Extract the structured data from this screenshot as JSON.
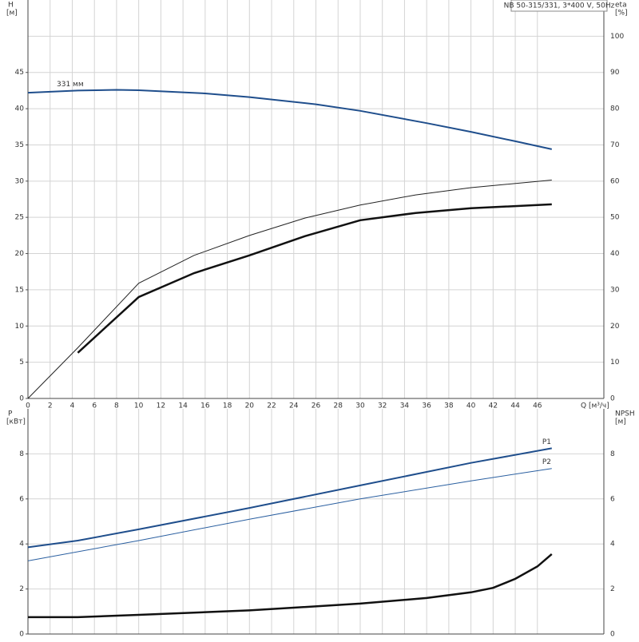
{
  "chart_data": [
    {
      "type": "line",
      "title": "NB 50-315/331, 3*400 V, 50Hz",
      "y_label": "H",
      "y_unit": "[м]",
      "y2_label": "eta",
      "y2_unit": "[%]",
      "x_label": "Q [м³/ч]",
      "xlim": [
        0,
        52
      ],
      "xticks": [
        0,
        2,
        4,
        6,
        8,
        10,
        12,
        14,
        16,
        18,
        20,
        22,
        24,
        26,
        28,
        30,
        32,
        34,
        36,
        38,
        40,
        42,
        44,
        46
      ],
      "ylim": [
        0,
        55
      ],
      "yticks": [
        0,
        5,
        10,
        15,
        20,
        25,
        30,
        35,
        40,
        45
      ],
      "y2lim": [
        0,
        110
      ],
      "y2ticks": [
        0,
        10,
        20,
        30,
        40,
        50,
        60,
        70,
        80,
        90,
        100
      ],
      "grid": true,
      "label_position": "start",
      "series": [
        {
          "name": "331 мм",
          "color": "#1f4e8c",
          "width": 2,
          "x": [
            0,
            4.5,
            8,
            10,
            16,
            20,
            26,
            30,
            36,
            40,
            44,
            47.3
          ],
          "values": [
            42.2,
            42.5,
            42.6,
            42.55,
            42.1,
            41.6,
            40.6,
            39.7,
            38.0,
            36.8,
            35.5,
            34.4
          ]
        },
        {
          "color": "#222222",
          "width": 1,
          "axis": "y2",
          "x": [
            0,
            4.5,
            10,
            15,
            20,
            25,
            30,
            35,
            40,
            47.3
          ],
          "values": [
            0,
            14,
            31.8,
            39.5,
            45,
            49.8,
            53.4,
            56.2,
            58.2,
            60.3
          ]
        },
        {
          "color": "#111111",
          "width": 2.5,
          "axis": "y2",
          "x": [
            4.5,
            10,
            15,
            20,
            25,
            30,
            35,
            40,
            47.3
          ],
          "values": [
            12.6,
            28,
            34.6,
            39.5,
            44.8,
            49.2,
            51.2,
            52.5,
            53.6
          ]
        }
      ]
    },
    {
      "type": "line",
      "y_label": "P",
      "y_unit": "[кВт]",
      "y2_label": "NPSH",
      "y2_unit": "[м]",
      "xlim": [
        0,
        52
      ],
      "ylim": [
        0,
        10
      ],
      "yticks": [
        0,
        2,
        4,
        6,
        8
      ],
      "y2lim": [
        0,
        10
      ],
      "y2ticks": [
        0,
        2,
        4,
        6,
        8
      ],
      "grid": true,
      "label_position": "end",
      "series": [
        {
          "name": "P1",
          "color": "#1f4e8c",
          "width": 2,
          "x": [
            0,
            4.5,
            10,
            20,
            30,
            40,
            47.3
          ],
          "values": [
            3.85,
            4.15,
            4.65,
            5.6,
            6.6,
            7.6,
            8.25
          ]
        },
        {
          "name": "P2",
          "color": "#2a5fa0",
          "width": 1,
          "x": [
            0,
            10,
            20,
            30,
            40,
            47.3
          ],
          "values": [
            3.25,
            4.15,
            5.1,
            6.0,
            6.8,
            7.35
          ]
        },
        {
          "color": "#111111",
          "width": 2.5,
          "axis": "y2",
          "x": [
            0,
            4.5,
            10,
            20,
            30,
            36,
            40,
            42,
            44,
            46,
            47.3
          ],
          "values": [
            0.75,
            0.75,
            0.85,
            1.05,
            1.35,
            1.6,
            1.85,
            2.05,
            2.45,
            3.0,
            3.55
          ]
        }
      ]
    }
  ]
}
